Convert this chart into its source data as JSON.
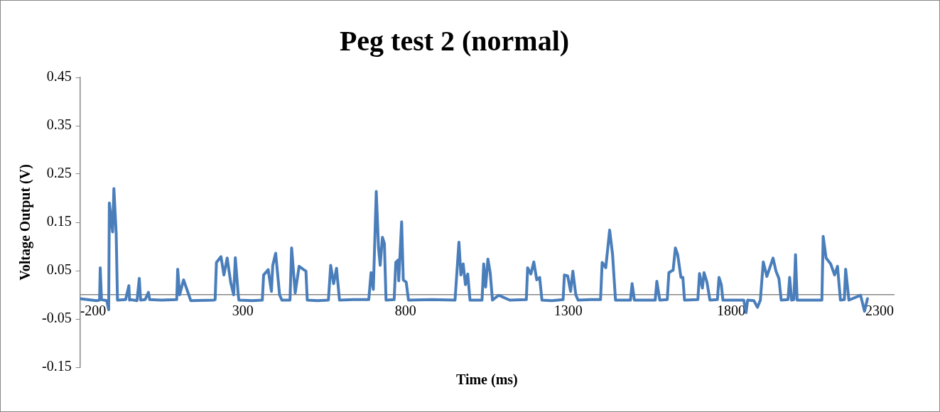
{
  "chart_data": {
    "type": "line",
    "title": "Peg test 2 (normal)",
    "xlabel": "Time (ms)",
    "ylabel": "Voltage Output (V)",
    "x": [
      -200,
      -150,
      -140,
      -138,
      -134,
      -118,
      -112,
      -110,
      -100,
      -96,
      -89,
      -85,
      -60,
      -50,
      -48,
      -45,
      -25,
      -18,
      -14,
      0,
      10,
      14,
      50,
      97,
      100,
      106,
      118,
      134,
      140,
      210,
      215,
      219,
      233,
      242,
      252,
      263,
      272,
      277,
      286,
      288,
      330,
      360,
      364,
      378,
      388,
      392,
      401,
      413,
      420,
      445,
      450,
      461,
      473,
      487,
      494,
      498,
      530,
      563,
      570,
      579,
      588,
      597,
      640,
      687,
      694,
      701,
      710,
      717,
      722,
      729,
      735,
      740,
      765,
      770,
      777,
      779,
      788,
      793,
      802,
      809,
      880,
      952,
      964,
      970,
      977,
      984,
      991,
      998,
      1035,
      1040,
      1046,
      1053,
      1060,
      1067,
      1086,
      1120,
      1171,
      1175,
      1185,
      1194,
      1203,
      1212,
      1219,
      1250,
      1284,
      1288,
      1298,
      1307,
      1314,
      1323,
      1330,
      1370,
      1399,
      1404,
      1415,
      1427,
      1436,
      1440,
      1445,
      1491,
      1496,
      1503,
      1567,
      1572,
      1581,
      1604,
      1609,
      1622,
      1629,
      1636,
      1646,
      1652,
      1657,
      1698,
      1703,
      1712,
      1717,
      1726,
      1735,
      1758,
      1763,
      1770,
      1775,
      1839,
      1846,
      1851,
      1870,
      1881,
      1890,
      1899,
      1910,
      1929,
      1938,
      1947,
      1954,
      1975,
      1980,
      1986,
      1993,
      1998,
      2003,
      2079,
      2083,
      2092,
      2106,
      2118,
      2127,
      2136,
      2148,
      2152,
      2162,
      2198,
      2210,
      2219
    ],
    "series": [
      {
        "color": "#4a7ebb",
        "values": [
          -0.008,
          -0.012,
          -0.011,
          0.056,
          -0.01,
          -0.012,
          -0.031,
          0.19,
          0.13,
          0.22,
          0.127,
          -0.011,
          -0.01,
          0.019,
          -0.011,
          -0.01,
          -0.012,
          0.034,
          -0.011,
          -0.01,
          0.005,
          -0.01,
          -0.011,
          -0.01,
          0.053,
          0,
          0.031,
          0,
          -0.012,
          -0.011,
          -0.01,
          0.067,
          0.079,
          0.041,
          0.076,
          0.025,
          0,
          0.077,
          0,
          -0.011,
          -0.012,
          -0.011,
          0.041,
          0.052,
          0.007,
          0.061,
          0.086,
          0,
          -0.011,
          -0.011,
          0.097,
          0.004,
          0.059,
          0.052,
          0.049,
          -0.011,
          -0.012,
          -0.011,
          0.061,
          0.023,
          0.055,
          -0.011,
          -0.01,
          -0.01,
          0.046,
          0.011,
          0.214,
          0.097,
          0.061,
          0.119,
          0.106,
          -0.011,
          -0.01,
          0.067,
          0.072,
          0.029,
          0.151,
          0.031,
          0.026,
          -0.011,
          -0.01,
          -0.011,
          0.109,
          0.041,
          0.064,
          0.021,
          0.043,
          -0.011,
          -0.011,
          0.064,
          0.016,
          0.074,
          0.046,
          -0.011,
          -0.001,
          -0.011,
          -0.01,
          0.056,
          0.043,
          0.068,
          0.031,
          0.036,
          -0.011,
          -0.012,
          -0.01,
          0.041,
          0.039,
          0.007,
          0.049,
          0,
          -0.011,
          -0.01,
          -0.01,
          0.067,
          0.056,
          0.134,
          0.083,
          0.041,
          -0.011,
          -0.011,
          0.023,
          -0.011,
          -0.011,
          0.028,
          -0.011,
          -0.01,
          0.046,
          0.051,
          0.097,
          0.083,
          0.036,
          0.036,
          -0.011,
          -0.01,
          0.044,
          0.014,
          0.046,
          0.026,
          -0.011,
          -0.01,
          0.036,
          0.021,
          -0.011,
          -0.011,
          -0.037,
          -0.011,
          -0.012,
          -0.026,
          -0.011,
          0.068,
          0.038,
          0.076,
          0.049,
          0.034,
          -0.011,
          -0.01,
          0.036,
          -0.011,
          -0.01,
          0.083,
          -0.011,
          -0.011,
          0.121,
          0.076,
          0.064,
          0.041,
          0.059,
          -0.011,
          -0.01,
          0.053,
          -0.011,
          -0.001,
          -0.034,
          -0.008
        ]
      }
    ],
    "xlim": [
      -200,
      2300
    ],
    "xticks": [
      -200,
      300,
      800,
      1300,
      1800,
      2300
    ],
    "ylim": [
      -0.15,
      0.45
    ],
    "yticks": [
      -0.15,
      -0.05,
      0.05,
      0.15,
      0.25,
      0.35,
      0.45
    ],
    "legend": false,
    "marker": "none",
    "line_style": "solid"
  }
}
